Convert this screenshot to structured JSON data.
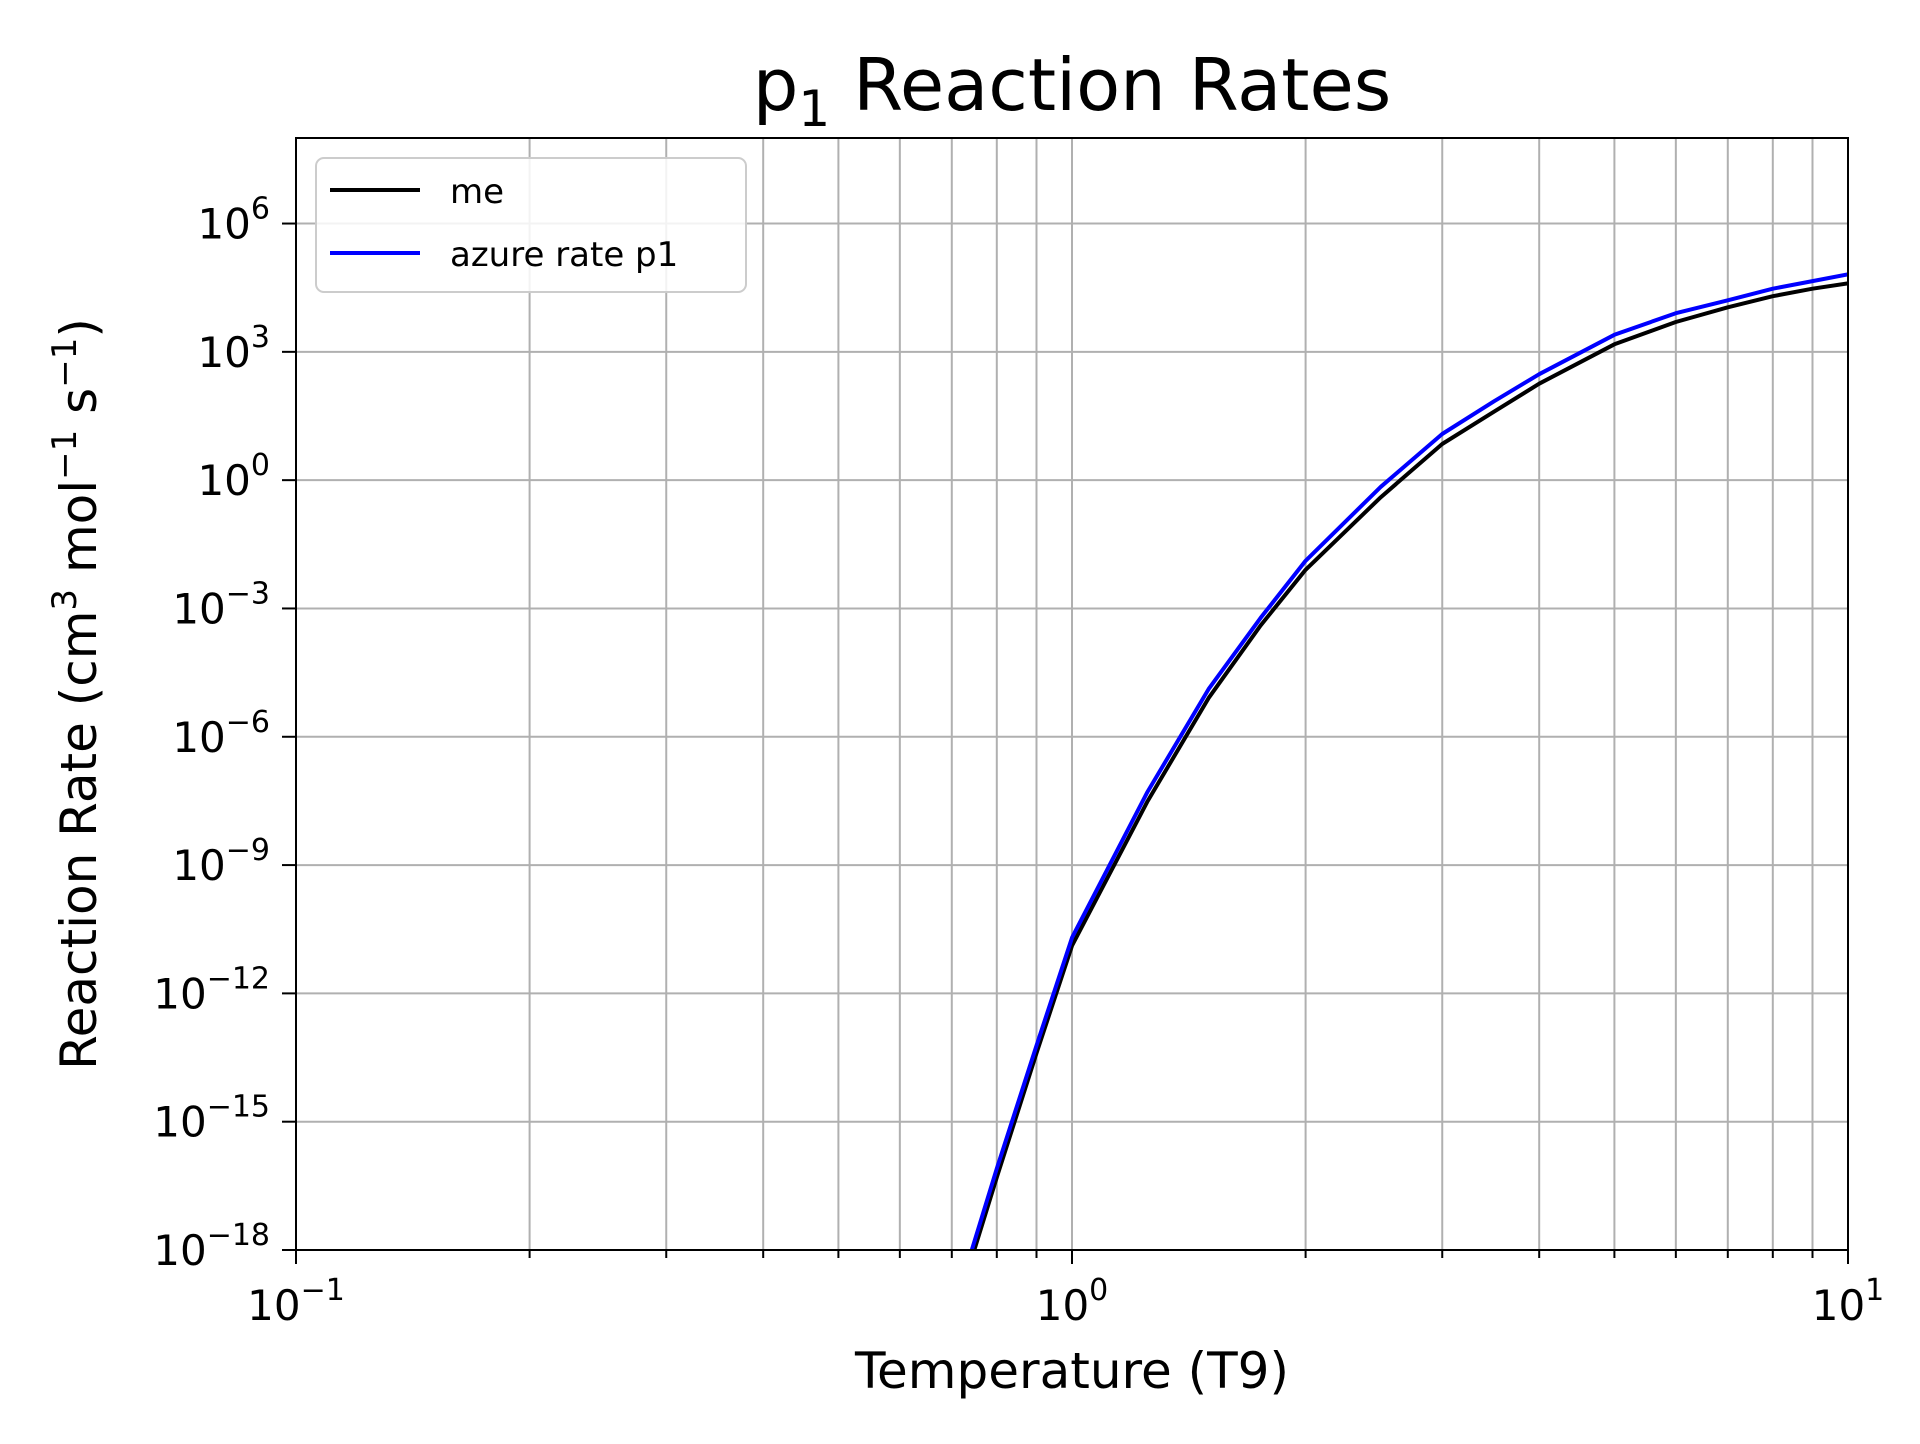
{
  "chart_data": {
    "type": "line",
    "title": "p1 Reaction Rates",
    "title_parts": {
      "base": "p",
      "subscript": "1",
      "rest": " Reaction Rates"
    },
    "xlabel": "Temperature (T9)",
    "ylabel": "Reaction Rate (cm3 mol−1 s−1)",
    "ylabel_parts": {
      "a": "Reaction Rate (cm",
      "s1": "3",
      "b": " mol",
      "s2": "−1",
      "c": " s",
      "s3": "−1",
      "d": ")"
    },
    "x_scale": "log",
    "y_scale": "log",
    "xlim": [
      0.1,
      10
    ],
    "ylim": [
      1e-18,
      100000000.0
    ],
    "grid": true,
    "legend_position": "top-left",
    "x_ticks": [
      {
        "base": "10",
        "exp": "−1",
        "value": 0.1
      },
      {
        "base": "10",
        "exp": "0",
        "value": 1
      },
      {
        "base": "10",
        "exp": "1",
        "value": 10
      }
    ],
    "y_ticks": [
      {
        "base": "10",
        "exp": "6",
        "value": 1000000.0
      },
      {
        "base": "10",
        "exp": "3",
        "value": 1000.0
      },
      {
        "base": "10",
        "exp": "0",
        "value": 1
      },
      {
        "base": "10",
        "exp": "−3",
        "value": 0.001
      },
      {
        "base": "10",
        "exp": "−6",
        "value": 1e-06
      },
      {
        "base": "10",
        "exp": "−9",
        "value": 1e-09
      },
      {
        "base": "10",
        "exp": "−12",
        "value": 1e-12
      },
      {
        "base": "10",
        "exp": "−15",
        "value": 1e-15
      },
      {
        "base": "10",
        "exp": "−18",
        "value": 1e-18
      }
    ],
    "series": [
      {
        "name": "me",
        "color": "#000000",
        "x": [
          0.7,
          0.8,
          0.9,
          1.0,
          1.25,
          1.5,
          1.75,
          2.0,
          2.5,
          3.0,
          3.5,
          4.0,
          5.0,
          6.0,
          7.0,
          8.0,
          9.0,
          10.0
        ],
        "y": [
          2e-20,
          5e-17,
          4e-14,
          1.3e-11,
          3e-08,
          8e-06,
          0.0004,
          0.008,
          0.4,
          7,
          40,
          180,
          1500,
          5000,
          11000.0,
          20000.0,
          30000.0,
          40000.0
        ]
      },
      {
        "name": "azure rate p1",
        "color": "#0000ff",
        "x": [
          0.7,
          0.8,
          0.9,
          1.0,
          1.25,
          1.5,
          1.75,
          2.0,
          2.5,
          3.0,
          3.5,
          4.0,
          5.0,
          6.0,
          7.0,
          8.0,
          9.0,
          10.0
        ],
        "y": [
          3e-20,
          8e-17,
          6e-14,
          2e-11,
          5e-08,
          1.3e-05,
          0.0006,
          0.013,
          0.7,
          12,
          70,
          300,
          2500,
          8000,
          16000.0,
          30000.0,
          45000.0,
          65000.0
        ]
      }
    ]
  }
}
